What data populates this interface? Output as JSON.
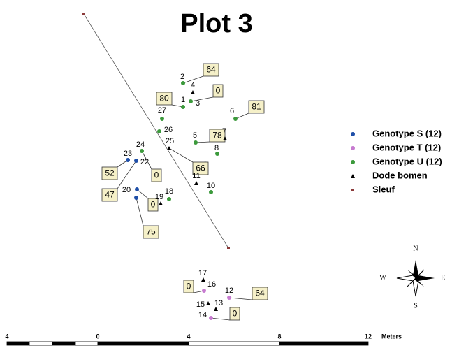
{
  "title": "Plot 3",
  "legend": [
    {
      "label": "Genotype S (12)",
      "color": "#1f4fa8",
      "points": [
        {
          "label": "23",
          "callout": 52
        },
        {
          "label": "22",
          "callout": 47
        },
        {
          "label": "20",
          "callout": 0
        },
        {
          "callout": 75
        }
      ]
    },
    {
      "label": "Genotype T (12)",
      "color": "#c77bd0",
      "points": [
        {
          "label": "16",
          "callout": 0
        },
        {
          "label": "12",
          "callout": 64
        },
        {
          "label": "14",
          "callout": 0
        }
      ]
    },
    {
      "label": "Genotype U (12)",
      "color": "#3c9a3c",
      "points": [
        {
          "label": "2",
          "callout": 64
        },
        {
          "label": "3",
          "callout": 0
        },
        {
          "label": "1",
          "callout": 80
        },
        {
          "label": "27"
        },
        {
          "label": "26"
        },
        {
          "label": "6",
          "callout": 81
        },
        {
          "label": "5",
          "callout": 78
        },
        {
          "label": "8"
        },
        {
          "label": "24",
          "callout": 0
        },
        {
          "label": "9"
        },
        {
          "label": "10"
        },
        {
          "label": "18"
        }
      ]
    },
    {
      "label": "Dode bomen",
      "color": "#000000",
      "points": [
        {
          "label": "4"
        },
        {
          "label": "7"
        },
        {
          "label": "25",
          "callout": 66
        },
        {
          "label": "11"
        },
        {
          "label": "19"
        },
        {
          "label": "17"
        },
        {
          "label": "15"
        },
        {
          "label": "13"
        }
      ]
    },
    {
      "label": "Sleuf",
      "color": "#8b3a3a",
      "points": []
    }
  ],
  "compass": {
    "north": "N",
    "south": "S",
    "west": "W",
    "east": "E"
  },
  "scale_bar": {
    "labels": [
      "4",
      "0",
      "4",
      "8",
      "12"
    ],
    "unit": "Meters"
  }
}
